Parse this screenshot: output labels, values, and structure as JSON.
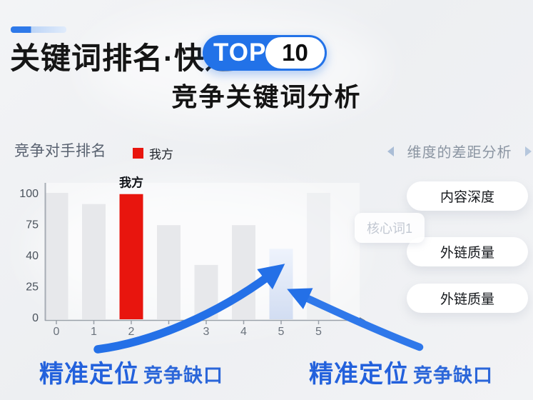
{
  "colors": {
    "accent_blue": "#2272e8",
    "arrow_blue": "#2470e7",
    "red": "#e8150e",
    "gap_bar_top": "#eef3fc",
    "gap_bar_bottom": "#d2ddf2",
    "competitor_bar": "#e6e7ea",
    "ghost_bar": "#e8eaed",
    "caption_blue": "#2361dc"
  },
  "header": {
    "title_line1": "关键词排名·快速",
    "badge_top": "TOP",
    "badge_number": "10",
    "title_line2": "竞争关键词分析"
  },
  "chart_data": {
    "type": "bar",
    "title": "竞争对手排名",
    "legend": [
      {
        "label": "我方",
        "color": "#e8150e"
      }
    ],
    "ylabel": "",
    "xlabel": "",
    "ylim": [
      0,
      100
    ],
    "y_tick_labels": [
      "100",
      "75",
      "40",
      "25",
      "0"
    ],
    "x_tick_labels": [
      "0",
      "1",
      "2",
      "",
      "3",
      "4",
      "5",
      "5",
      ""
    ],
    "bars": [
      {
        "x": "0",
        "value": 100,
        "kind": "competitor"
      },
      {
        "x": "1",
        "value": 91,
        "kind": "competitor"
      },
      {
        "x": "2",
        "value": 99,
        "kind": "ours",
        "label": "我方"
      },
      {
        "x": "",
        "value": 74,
        "kind": "competitor"
      },
      {
        "x": "3",
        "value": 42,
        "kind": "competitor"
      },
      {
        "x": "4",
        "value": 74,
        "kind": "competitor"
      },
      {
        "x": "5",
        "value": 55,
        "kind": "gap"
      },
      {
        "x": "5",
        "value": 100,
        "kind": "ghost"
      }
    ],
    "grid": false,
    "legend_position": "top"
  },
  "right_panel": {
    "header": "维度的差距分析",
    "chip": "核心词1",
    "buttons": [
      "内容深度",
      "外链质量",
      "外链质量"
    ]
  },
  "captions": [
    {
      "main": "精准定位",
      "sub": "竞争缺口"
    },
    {
      "main": "精准定位",
      "sub": "竞争缺口"
    }
  ]
}
